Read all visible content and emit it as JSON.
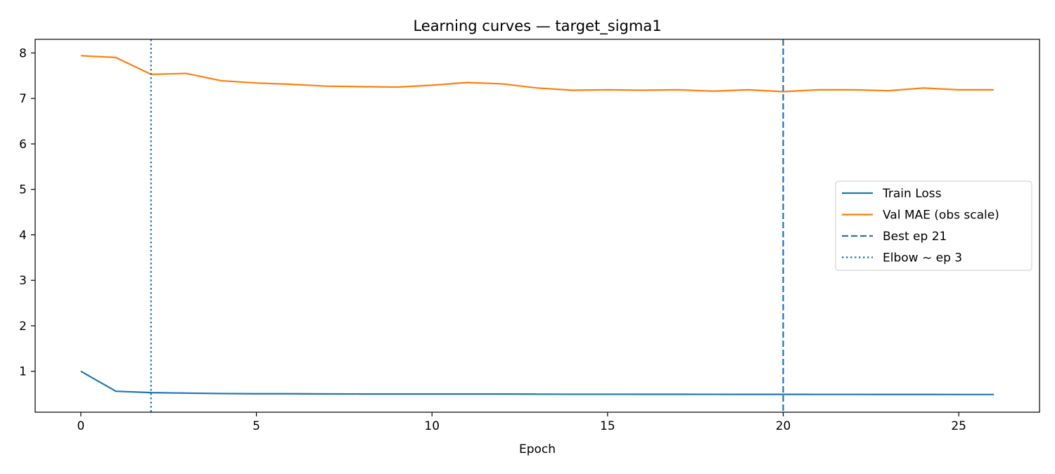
{
  "chart_data": {
    "type": "line",
    "title": "Learning curves — target_sigma1",
    "xlabel": "Epoch",
    "ylabel": "",
    "xlim": [
      -1.3,
      27.3
    ],
    "ylim": [
      0.1,
      8.3
    ],
    "x_ticks": [
      0,
      5,
      10,
      15,
      20,
      25
    ],
    "y_ticks": [
      1,
      2,
      3,
      4,
      5,
      6,
      7,
      8
    ],
    "grid": false,
    "legend_position": "center-right",
    "series": [
      {
        "name": "Train Loss",
        "color": "#1f77b4",
        "style": "solid",
        "x": [
          0,
          1,
          2,
          3,
          4,
          5,
          6,
          7,
          8,
          9,
          10,
          11,
          12,
          13,
          14,
          15,
          16,
          17,
          18,
          19,
          20,
          21,
          22,
          23,
          24,
          25,
          26
        ],
        "values": [
          1.0,
          0.56,
          0.53,
          0.52,
          0.51,
          0.505,
          0.505,
          0.502,
          0.5,
          0.5,
          0.5,
          0.5,
          0.5,
          0.497,
          0.495,
          0.495,
          0.494,
          0.494,
          0.493,
          0.492,
          0.492,
          0.491,
          0.491,
          0.49,
          0.49,
          0.489,
          0.489
        ]
      },
      {
        "name": "Val MAE (obs scale)",
        "color": "#ff7f0e",
        "style": "solid",
        "x": [
          0,
          1,
          2,
          3,
          4,
          5,
          6,
          7,
          8,
          9,
          10,
          11,
          12,
          13,
          14,
          15,
          16,
          17,
          18,
          19,
          20,
          21,
          22,
          23,
          24,
          25,
          26
        ],
        "values": [
          7.94,
          7.9,
          7.53,
          7.55,
          7.39,
          7.34,
          7.31,
          7.27,
          7.26,
          7.25,
          7.29,
          7.35,
          7.32,
          7.23,
          7.18,
          7.19,
          7.18,
          7.19,
          7.16,
          7.19,
          7.15,
          7.19,
          7.19,
          7.17,
          7.23,
          7.19,
          7.19
        ]
      }
    ],
    "vlines": [
      {
        "name": "Best ep 21",
        "x": 20,
        "color": "#1f77b4",
        "style": "dashed"
      },
      {
        "name": "Elbow ~ ep 3",
        "x": 2,
        "color": "#1f77b4",
        "style": "dotted"
      }
    ]
  }
}
